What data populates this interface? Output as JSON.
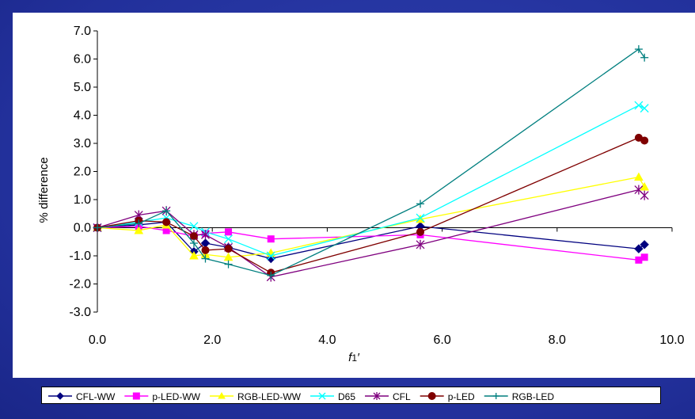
{
  "chart_data": {
    "type": "line",
    "xlabel": "f1'",
    "xlabel_main": "f",
    "xlabel_sub": "1",
    "xlabel_prime": "′",
    "ylabel": "% difference",
    "xlim": [
      0,
      10
    ],
    "ylim": [
      -3,
      7
    ],
    "xticks": [
      "0.0",
      "2.0",
      "4.0",
      "6.0",
      "8.0",
      "10.0"
    ],
    "yticks": [
      "7.0",
      "6.0",
      "5.0",
      "4.0",
      "3.0",
      "2.0",
      "1.0",
      "0.0",
      "-1.0",
      "-2.0",
      "-3.0"
    ],
    "grid": false,
    "legend_position": "bottom",
    "series": [
      {
        "name": "CFL-WW",
        "color": "#00007f",
        "marker": "diamond",
        "x": [
          0.0,
          0.72,
          1.2,
          1.68,
          1.88,
          2.28,
          3.02,
          5.62,
          9.42,
          9.52
        ],
        "y": [
          0.0,
          0.1,
          0.2,
          -0.85,
          -0.55,
          -0.7,
          -1.1,
          0.05,
          -0.75,
          -0.6
        ]
      },
      {
        "name": "p-LED-WW",
        "color": "#ff00ff",
        "marker": "square",
        "x": [
          0.0,
          0.72,
          1.2,
          1.68,
          1.88,
          2.28,
          3.02,
          5.62,
          9.42,
          9.52
        ],
        "y": [
          0.0,
          0.05,
          -0.1,
          -0.3,
          -0.2,
          -0.15,
          -0.4,
          -0.25,
          -1.15,
          -1.05
        ]
      },
      {
        "name": "RGB-LED-WW",
        "color": "#ffff00",
        "marker": "triangle",
        "x": [
          0.0,
          0.72,
          1.2,
          1.68,
          1.88,
          2.28,
          3.02,
          5.62,
          9.42,
          9.52
        ],
        "y": [
          0.0,
          -0.1,
          0.1,
          -1.0,
          -0.95,
          -1.05,
          -0.9,
          0.3,
          1.8,
          1.45
        ]
      },
      {
        "name": "D65",
        "color": "#00ffff",
        "marker": "x",
        "x": [
          0.0,
          0.72,
          1.2,
          1.68,
          1.88,
          2.28,
          3.02,
          5.62,
          9.42,
          9.52
        ],
        "y": [
          0.0,
          0.2,
          0.35,
          0.05,
          -0.15,
          -0.4,
          -1.0,
          0.35,
          4.35,
          4.25
        ]
      },
      {
        "name": "CFL",
        "color": "#7f007f",
        "marker": "star",
        "x": [
          0.0,
          0.72,
          1.2,
          1.68,
          1.88,
          2.28,
          3.02,
          5.62,
          9.42,
          9.52
        ],
        "y": [
          0.0,
          0.45,
          0.6,
          -0.25,
          -0.25,
          -0.7,
          -1.75,
          -0.6,
          1.35,
          1.15
        ]
      },
      {
        "name": "p-LED",
        "color": "#7f0000",
        "marker": "circle",
        "x": [
          0.0,
          0.72,
          1.2,
          1.68,
          1.88,
          2.28,
          3.02,
          5.62,
          9.42,
          9.52
        ],
        "y": [
          0.0,
          0.25,
          0.2,
          -0.3,
          -0.8,
          -0.75,
          -1.6,
          -0.15,
          3.2,
          3.1
        ]
      },
      {
        "name": "RGB-LED",
        "color": "#007f7f",
        "marker": "plus",
        "x": [
          0.0,
          0.72,
          1.2,
          1.68,
          1.88,
          2.28,
          3.02,
          5.62,
          9.42,
          9.52
        ],
        "y": [
          0.0,
          0.15,
          0.6,
          -0.55,
          -1.1,
          -1.3,
          -1.7,
          0.85,
          6.35,
          6.05
        ]
      }
    ]
  }
}
